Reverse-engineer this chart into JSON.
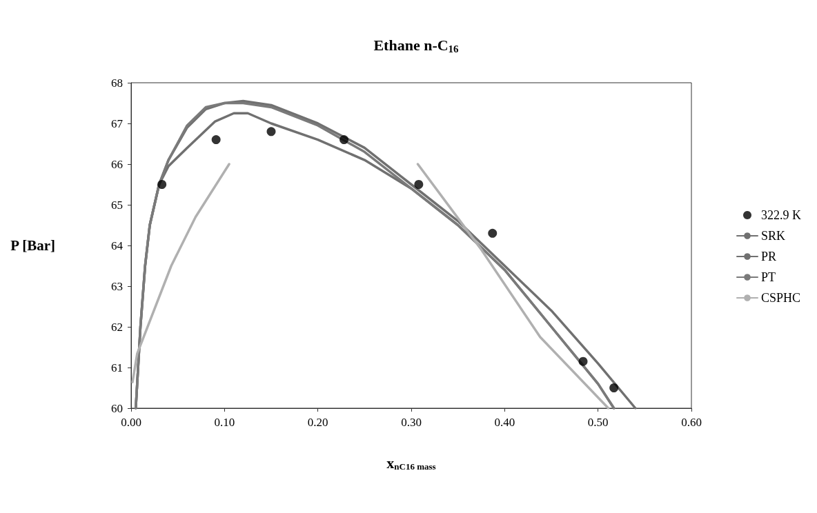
{
  "chart_data": {
    "type": "line",
    "title": "Ethane n-C$_{16}$",
    "xlabel": "x$_{nC16 mass}$",
    "ylabel": "P [Bar]",
    "xlim": [
      0,
      0.6
    ],
    "ylim": [
      60,
      68
    ],
    "xticks": [
      {
        "value": 0,
        "label": "0.00"
      },
      {
        "value": 0.1,
        "label": "0.10"
      },
      {
        "value": 0.2,
        "label": "0.20"
      },
      {
        "value": 0.3,
        "label": "0.30"
      },
      {
        "value": 0.4,
        "label": "0.40"
      },
      {
        "value": 0.5,
        "label": "0.50"
      },
      {
        "value": 0.6,
        "label": "0.60"
      }
    ],
    "yticks": [
      60,
      61,
      62,
      63,
      64,
      65,
      66,
      67,
      68
    ],
    "grid": false,
    "legend": "right",
    "series": [
      {
        "name": "322.9 K",
        "type": "scatter",
        "marker": "circle",
        "color": "#000000",
        "x": [
          0.033,
          0.091,
          0.15,
          0.228,
          0.308,
          0.387,
          0.484,
          0.517
        ],
        "values": [
          65.5,
          66.6,
          66.8,
          66.6,
          65.5,
          64.3,
          61.15,
          60.5
        ]
      },
      {
        "name": "SRK",
        "color": "#707070",
        "x": [
          0.005,
          0.01,
          0.015,
          0.02,
          0.03,
          0.04,
          0.06,
          0.08,
          0.1,
          0.12,
          0.15,
          0.2,
          0.25,
          0.3,
          0.35,
          0.4,
          0.45,
          0.5,
          0.54
        ],
        "values": [
          60,
          62,
          63.5,
          64.5,
          65.5,
          66.1,
          66.9,
          67.35,
          67.5,
          67.55,
          67.45,
          67.0,
          66.4,
          65.5,
          64.6,
          63.5,
          62.4,
          61.1,
          60
        ]
      },
      {
        "name": "PR",
        "color": "#707070",
        "x": [
          0.005,
          0.01,
          0.015,
          0.02,
          0.03,
          0.04,
          0.06,
          0.09,
          0.11,
          0.125,
          0.15,
          0.2,
          0.25,
          0.3,
          0.35,
          0.4,
          0.45,
          0.5,
          0.517
        ],
        "values": [
          60,
          62,
          63.5,
          64.5,
          65.5,
          65.95,
          66.4,
          67.05,
          67.25,
          67.25,
          67.0,
          66.6,
          66.1,
          65.4,
          64.5,
          63.4,
          62.0,
          60.6,
          60
        ]
      },
      {
        "name": "PT",
        "color": "#7a7a7a",
        "x": [
          0.005,
          0.01,
          0.015,
          0.02,
          0.03,
          0.04,
          0.06,
          0.08,
          0.1,
          0.12,
          0.15,
          0.2,
          0.25,
          0.3,
          0.35,
          0.4,
          0.45,
          0.5,
          0.517
        ],
        "values": [
          60,
          62,
          63.5,
          64.5,
          65.5,
          66.1,
          66.95,
          67.4,
          67.5,
          67.5,
          67.4,
          66.95,
          66.3,
          65.4,
          64.5,
          63.4,
          62.0,
          60.6,
          60
        ]
      },
      {
        "name": "CSPHC",
        "color": "#b0b0b0",
        "x": [
          0.0015,
          0.0065,
          0.043,
          0.069,
          0.105,
          0.2,
          0.307,
          0.375,
          0.438,
          0.511
        ],
        "values": [
          60.64,
          61.34,
          63.5,
          64.7,
          66.0,
          null,
          66.0,
          63.9,
          61.75,
          60
        ]
      }
    ]
  }
}
